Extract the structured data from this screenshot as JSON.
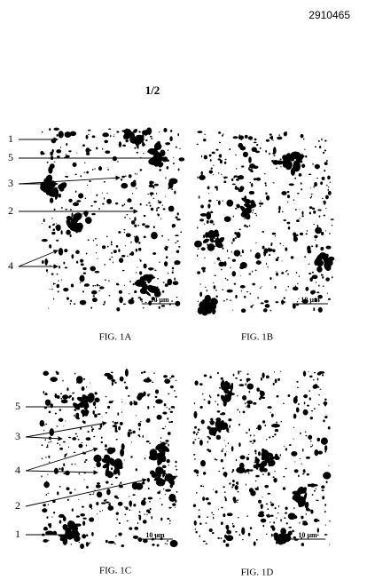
{
  "header": {
    "number": "2910465",
    "sheet": "1/2"
  },
  "figures": [
    {
      "caption": "FIG. 1A",
      "scale_bar": "10 µm",
      "labels": [
        "1",
        "5",
        "3",
        "2",
        "4"
      ]
    },
    {
      "caption": "FIG. 1B",
      "scale_bar": "10 µm",
      "labels": []
    },
    {
      "caption": "FIG. 1C",
      "scale_bar": "10 µm",
      "labels": [
        "5",
        "3",
        "4",
        "2",
        "1"
      ]
    },
    {
      "caption": "FIG. 1D",
      "scale_bar": "10 µm",
      "labels": []
    }
  ]
}
